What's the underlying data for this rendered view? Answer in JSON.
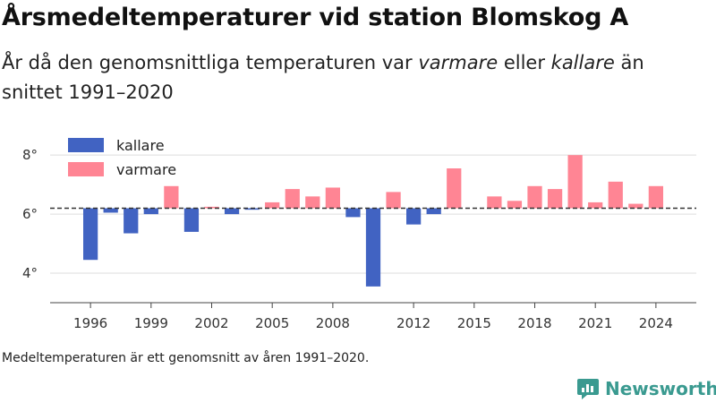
{
  "title": "Årsmedeltemperaturer vid station Blomskog A",
  "subtitle": {
    "before": "År då den genomsnittliga temperaturen var ",
    "em1": "varmare",
    "mid": " eller ",
    "em2": "kallare",
    "after": " än snittet 1991–2020"
  },
  "footnote": "Medeltemperaturen är ett genomsnitt av åren 1991–2020.",
  "brand": "Newsworthy",
  "colors": {
    "colder": "#4163c2",
    "warmer": "#ff8594",
    "baseline": "#333333",
    "grid": "#dddddd"
  },
  "chart_data": {
    "type": "bar",
    "baseline": 6.2,
    "xlim": [
      1994,
      2026
    ],
    "ylim": [
      3,
      8.4
    ],
    "x_ticks": [
      {
        "value": 1996,
        "label": "1996"
      },
      {
        "value": 1999,
        "label": "1999"
      },
      {
        "value": 2002,
        "label": "2002"
      },
      {
        "value": 2005,
        "label": "2005"
      },
      {
        "value": 2008,
        "label": "2008"
      },
      {
        "value": 2012,
        "label": "2012"
      },
      {
        "value": 2015,
        "label": "2015"
      },
      {
        "value": 2018,
        "label": "2018"
      },
      {
        "value": 2021,
        "label": "2021"
      },
      {
        "value": 2024,
        "label": "2024"
      }
    ],
    "y_ticks": [
      {
        "value": 4,
        "label": "4°"
      },
      {
        "value": 6,
        "label": "6°"
      },
      {
        "value": 8,
        "label": "8°"
      }
    ],
    "legend": [
      {
        "key": "colder",
        "label": "kallare"
      },
      {
        "key": "warmer",
        "label": "varmare"
      }
    ],
    "years": [
      1996,
      1997,
      1998,
      1999,
      2000,
      2001,
      2002,
      2003,
      2004,
      2005,
      2006,
      2007,
      2008,
      2009,
      2010,
      2011,
      2012,
      2013,
      2014,
      2016,
      2017,
      2018,
      2019,
      2020,
      2021,
      2022,
      2023,
      2024
    ],
    "values": [
      4.45,
      6.05,
      5.35,
      6.0,
      6.95,
      5.4,
      6.25,
      6.0,
      6.15,
      6.4,
      6.85,
      6.6,
      6.9,
      5.9,
      3.55,
      6.75,
      5.65,
      6.0,
      7.55,
      6.6,
      6.45,
      6.95,
      6.85,
      8.0,
      6.4,
      7.1,
      6.35,
      6.95
    ],
    "grid": true,
    "legend_position": "top-left"
  }
}
